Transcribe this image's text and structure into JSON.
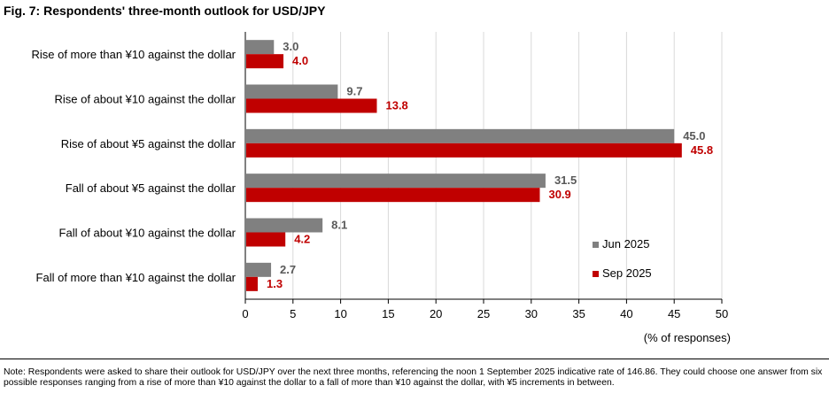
{
  "title": "Fig. 7: Respondents' three-month outlook for USD/JPY",
  "note": "Note: Respondents were asked to share their outlook for USD/JPY over the next three months, referencing the noon 1 September 2025 indicative rate of 146.86. They could choose one answer from six possible responses ranging from a rise of more than ¥10 against the dollar to a fall of more than ¥10 against the dollar, with ¥5 increments in between.",
  "colors": {
    "jun": "#808080",
    "sep": "#c00000",
    "sep_label": "#c00000",
    "jun_label": "#595959"
  },
  "chart_data": {
    "type": "bar",
    "orientation": "horizontal",
    "categories": [
      "Rise of more than ¥10 against the dollar",
      "Rise of about ¥10 against the dollar",
      "Rise of about ¥5 against the dollar",
      "Fall of about ¥5 against the dollar",
      "Fall of about ¥10 against the dollar",
      "Fall of more than ¥10 against the dollar"
    ],
    "series": [
      {
        "name": "Jun 2025",
        "values": [
          3.0,
          9.7,
          45.0,
          31.5,
          8.1,
          2.7
        ]
      },
      {
        "name": "Sep 2025",
        "values": [
          4.0,
          13.8,
          45.8,
          30.9,
          4.2,
          1.3
        ]
      }
    ],
    "xlabel": "(% of responses)",
    "xlim": [
      0,
      50
    ],
    "xticks": [
      "0",
      "5",
      "10",
      "15",
      "20",
      "25",
      "30",
      "35",
      "40",
      "45",
      "50"
    ],
    "grid": true,
    "legend": "bottom-right"
  }
}
